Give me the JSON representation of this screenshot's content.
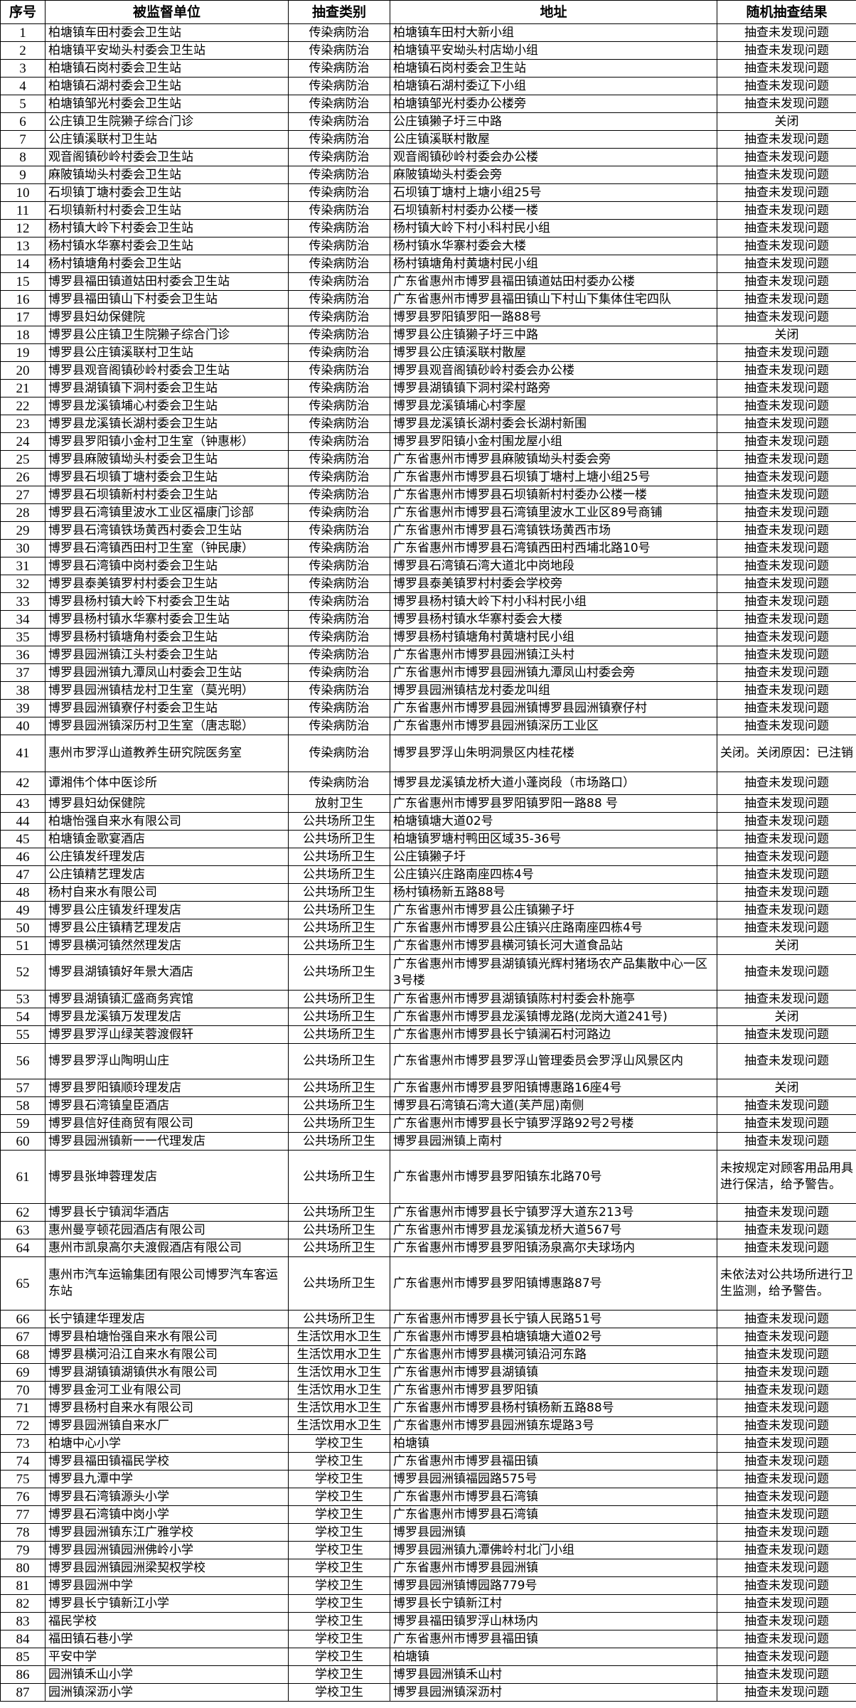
{
  "headers": [
    "序号",
    "被监督单位",
    "抽查类别",
    "地址",
    "随机抽查结果"
  ],
  "rows": [
    [
      "1",
      "柏塘镇车田村委会卫生站",
      "传染病防治",
      "柏塘镇车田村大新小组",
      "抽查未发现问题"
    ],
    [
      "2",
      "柏塘镇平安坳头村委会卫生站",
      "传染病防治",
      "柏塘镇平安坳头村店坳小组",
      "抽查未发现问题"
    ],
    [
      "3",
      "柏塘镇石岗村委会卫生站",
      "传染病防治",
      "柏塘镇石岗村委会卫生站",
      "抽查未发现问题"
    ],
    [
      "4",
      "柏塘镇石湖村委会卫生站",
      "传染病防治",
      "柏塘镇石湖村委辽下小组",
      "抽查未发现问题"
    ],
    [
      "5",
      "柏塘镇邹光村委会卫生站",
      "传染病防治",
      "柏塘镇邹光村委办公楼旁",
      "抽查未发现问题"
    ],
    [
      "6",
      "公庄镇卫生院獭子综合门诊",
      "传染病防治",
      "公庄镇獭子圩三中路",
      "关闭"
    ],
    [
      "7",
      "公庄镇溪联村卫生站",
      "传染病防治",
      "公庄镇溪联村散屋",
      "抽查未发现问题"
    ],
    [
      "8",
      "观音阁镇砂岭村委会卫生站",
      "传染病防治",
      "观音阁镇砂岭村委会办公楼",
      "抽查未发现问题"
    ],
    [
      "9",
      "麻陂镇坳头村委会卫生站",
      "传染病防治",
      "麻陂镇坳头村委会旁",
      "抽查未发现问题"
    ],
    [
      "10",
      "石坝镇丁塘村委会卫生站",
      "传染病防治",
      "石坝镇丁塘村上塘小组25号",
      "抽查未发现问题"
    ],
    [
      "11",
      "石坝镇新村村委会卫生站",
      "传染病防治",
      "石坝镇新村村委办公楼一楼",
      "抽查未发现问题"
    ],
    [
      "12",
      "杨村镇大岭下村委会卫生站",
      "传染病防治",
      "杨村镇大岭下村小科村民小组",
      "抽查未发现问题"
    ],
    [
      "13",
      "杨村镇水华寨村委会卫生站",
      "传染病防治",
      "杨村镇水华寨村委会大楼",
      "抽查未发现问题"
    ],
    [
      "14",
      "杨村镇塘角村委会卫生站",
      "传染病防治",
      "杨村镇塘角村黄塘村民小组",
      "抽查未发现问题"
    ],
    [
      "15",
      "博罗县福田镇道姑田村委会卫生站",
      "传染病防治",
      "广东省惠州市博罗县福田镇道姑田村委办公楼",
      "抽查未发现问题"
    ],
    [
      "16",
      "博罗县福田镇山下村委会卫生站",
      "传染病防治",
      "广东省惠州市博罗县福田镇山下村山下集体住宅四队",
      "抽查未发现问题"
    ],
    [
      "17",
      "博罗县妇幼保健院",
      "传染病防治",
      "博罗县罗阳镇罗阳一路88号",
      "抽查未发现问题"
    ],
    [
      "18",
      "博罗县公庄镇卫生院獭子综合门诊",
      "传染病防治",
      "博罗县公庄镇獭子圩三中路",
      "关闭"
    ],
    [
      "19",
      "博罗县公庄镇溪联村卫生站",
      "传染病防治",
      "博罗县公庄镇溪联村散屋",
      "抽查未发现问题"
    ],
    [
      "20",
      "博罗县观音阁镇砂岭村委会卫生站",
      "传染病防治",
      "博罗县观音阁镇砂岭村委会办公楼",
      "抽查未发现问题"
    ],
    [
      "21",
      "博罗县湖镇镇下洞村委会卫生站",
      "传染病防治",
      "博罗县湖镇镇下洞村梁村路旁",
      "抽查未发现问题"
    ],
    [
      "22",
      "博罗县龙溪镇埔心村委会卫生站",
      "传染病防治",
      "博罗县龙溪镇埔心村李屋",
      "抽查未发现问题"
    ],
    [
      "23",
      "博罗县龙溪镇长湖村委会卫生站",
      "传染病防治",
      "博罗县龙溪镇长湖村委会长湖村新围",
      "抽查未发现问题"
    ],
    [
      "24",
      "博罗县罗阳镇小金村卫生室（钟惠彬）",
      "传染病防治",
      "博罗县罗阳镇小金村围龙屋小组",
      "抽查未发现问题"
    ],
    [
      "25",
      "博罗县麻陂镇坳头村委会卫生站",
      "传染病防治",
      "广东省惠州市博罗县麻陂镇坳头村委会旁",
      "抽查未发现问题"
    ],
    [
      "26",
      "博罗县石坝镇丁塘村委会卫生站",
      "传染病防治",
      "广东省惠州市博罗县石坝镇丁塘村上塘小组25号",
      "抽查未发现问题"
    ],
    [
      "27",
      "博罗县石坝镇新村村委会卫生站",
      "传染病防治",
      "广东省惠州市博罗县石坝镇新村村委办公楼一楼",
      "抽查未发现问题"
    ],
    [
      "28",
      "博罗县石湾镇里波水工业区福康门诊部",
      "传染病防治",
      "广东省惠州市博罗县石湾镇里波水工业区89号商铺",
      "抽查未发现问题"
    ],
    [
      "29",
      "博罗县石湾镇铁场黄西村委会卫生站",
      "传染病防治",
      "广东省惠州市博罗县石湾镇铁场黄西市场",
      "抽查未发现问题"
    ],
    [
      "30",
      "博罗县石湾镇西田村卫生室（钟民康）",
      "传染病防治",
      "广东省惠州市博罗县石湾镇西田村西埔北路10号",
      "抽查未发现问题"
    ],
    [
      "31",
      "博罗县石湾镇中岗村委会卫生站",
      "传染病防治",
      "博罗县石湾镇石湾大道北中岗地段",
      "抽查未发现问题"
    ],
    [
      "32",
      "博罗县泰美镇罗村村委会卫生站",
      "传染病防治",
      "博罗县泰美镇罗村村委会学校旁",
      "抽查未发现问题"
    ],
    [
      "33",
      "博罗县杨村镇大岭下村委会卫生站",
      "传染病防治",
      "博罗县杨村镇大岭下村小科村民小组",
      "抽查未发现问题"
    ],
    [
      "34",
      "博罗县杨村镇水华寨村委会卫生站",
      "传染病防治",
      "博罗县杨村镇水华寨村委会大楼",
      "抽查未发现问题"
    ],
    [
      "35",
      "博罗县杨村镇塘角村委会卫生站",
      "传染病防治",
      "博罗县杨村镇塘角村黄塘村民小组",
      "抽查未发现问题"
    ],
    [
      "36",
      "博罗县园洲镇江头村委会卫生站",
      "传染病防治",
      "广东省惠州市博罗县园洲镇江头村",
      "抽查未发现问题"
    ],
    [
      "37",
      "博罗县园洲镇九潭凤山村委会卫生站",
      "传染病防治",
      "广东省惠州市博罗县园洲镇九潭凤山村委会旁",
      "抽查未发现问题"
    ],
    [
      "38",
      "博罗县园洲镇桔龙村卫生室（莫光明）",
      "传染病防治",
      "博罗县园洲镇桔龙村委龙叫组",
      "抽查未发现问题"
    ],
    [
      "39",
      "博罗县园洲镇寮仔村委会卫生站",
      "传染病防治",
      "广东省惠州市博罗县园洲镇博罗县园洲镇寮仔村",
      "抽查未发现问题"
    ],
    [
      "40",
      "博罗县园洲镇深历村卫生室（唐志聪）",
      "传染病防治",
      "广东省惠州市博罗县园洲镇深历工业区",
      "抽查未发现问题"
    ],
    [
      "41",
      "惠州市罗浮山道教养生研究院医务室",
      "传染病防治",
      "博罗县罗浮山朱明洞景区内桂花楼",
      "关闭。关闭原因：已注销"
    ],
    [
      "42",
      "谭湘伟个体中医诊所",
      "传染病防治",
      "博罗县龙溪镇龙桥大道小蓬岗段（市场路口）",
      "抽查未发现问题"
    ],
    [
      "43",
      "博罗县妇幼保健院",
      "放射卫生",
      "广东省惠州市博罗县罗阳镇罗阳一路88 号",
      "抽查未发现问题"
    ],
    [
      "44",
      "柏塘怡强自来水有限公司",
      "公共场所卫生",
      "柏塘镇塘大道02号",
      "抽查未发现问题"
    ],
    [
      "45",
      "柏塘镇金歌宴酒店",
      "公共场所卫生",
      "柏塘镇罗塘村鸭田区域35-36号",
      "抽查未发现问题"
    ],
    [
      "46",
      "公庄镇发纤理发店",
      "公共场所卫生",
      "公庄镇獭子圩",
      "抽查未发现问题"
    ],
    [
      "47",
      "公庄镇精艺理发店",
      "公共场所卫生",
      "公庄镇兴庄路南座四栋4号",
      "抽查未发现问题"
    ],
    [
      "48",
      "杨村自来水有限公司",
      "公共场所卫生",
      "杨村镇杨新五路88号",
      "抽查未发现问题"
    ],
    [
      "49",
      "博罗县公庄镇发纤理发店",
      "公共场所卫生",
      "广东省惠州市博罗县公庄镇獭子圩",
      "抽查未发现问题"
    ],
    [
      "50",
      "博罗县公庄镇精艺理发店",
      "公共场所卫生",
      "广东省惠州市博罗县公庄镇兴庄路南座四栋4号",
      "抽查未发现问题"
    ],
    [
      "51",
      "博罗县横河镇然然理发店",
      "公共场所卫生",
      "广东省惠州市博罗县横河镇长河大道食品站",
      "关闭"
    ],
    [
      "52",
      "博罗县湖镇镇好年景大酒店",
      "公共场所卫生",
      "广东省惠州市博罗县湖镇镇光辉村猪场农产品集散中心一区3号楼",
      "抽查未发现问题"
    ],
    [
      "53",
      "博罗县湖镇镇汇盛商务宾馆",
      "公共场所卫生",
      "广东省惠州市博罗县湖镇镇陈村村委会朴施亭",
      "抽查未发现问题"
    ],
    [
      "54",
      "博罗县龙溪镇万发理发店",
      "公共场所卫生",
      "广东省惠州市博罗县龙溪镇博龙路(龙岗大道241号)",
      "关闭"
    ],
    [
      "55",
      "博罗县罗浮山绿芙蓉渡假轩",
      "公共场所卫生",
      "广东省惠州市博罗县长宁镇澜石村河路边",
      "抽查未发现问题"
    ],
    [
      "56",
      "博罗县罗浮山陶明山庄",
      "公共场所卫生",
      "广东省惠州市博罗县罗浮山管理委员会罗浮山风景区内",
      "抽查未发现问题"
    ],
    [
      "57",
      "博罗县罗阳镇顺玲理发店",
      "公共场所卫生",
      "广东省惠州市博罗县罗阳镇博惠路16座4号",
      "关闭"
    ],
    [
      "58",
      "博罗县石湾镇皇臣酒店",
      "公共场所卫生",
      "博罗县石湾镇石湾大道(芙芦屈)南侧",
      "抽查未发现问题"
    ],
    [
      "59",
      "博罗县信好佳商贸有限公司",
      "公共场所卫生",
      "广东省惠州市博罗县长宁镇罗浮路92号2号楼",
      "抽查未发现问题"
    ],
    [
      "60",
      "博罗县园洲镇新一一代理发店",
      "公共场所卫生",
      "博罗县园洲镇上南村",
      "抽查未发现问题"
    ],
    [
      "61",
      "博罗县张坤蓉理发店",
      "公共场所卫生",
      "广东省惠州市博罗县罗阳镇东北路70号",
      "未按规定对顾客用品用具进行保洁，给予警告。"
    ],
    [
      "62",
      "博罗县长宁镇润华酒店",
      "公共场所卫生",
      "广东省惠州市博罗县长宁镇罗浮大道东213号",
      "抽查未发现问题"
    ],
    [
      "63",
      "惠州曼亨顿花园酒店有限公司",
      "公共场所卫生",
      "广东省惠州市博罗县龙溪镇龙桥大道567号",
      "抽查未发现问题"
    ],
    [
      "64",
      "惠州市凯泉高尔夫渡假酒店有限公司",
      "公共场所卫生",
      "广东省惠州市博罗县罗阳镇汤泉高尔夫球场内",
      "抽查未发现问题"
    ],
    [
      "65",
      "惠州市汽车运输集团有限公司博罗汽车客运东站",
      "公共场所卫生",
      "广东省惠州市博罗县罗阳镇博惠路87号",
      "未依法对公共场所进行卫生监测，给予警告。"
    ],
    [
      "66",
      "长宁镇建华理发店",
      "公共场所卫生",
      "广东省惠州市博罗县长宁镇人民路51号",
      "抽查未发现问题"
    ],
    [
      "67",
      "博罗县柏塘怡强自来水有限公司",
      "生活饮用水卫生",
      "广东省惠州市博罗县柏塘镇塘大道02号",
      "抽查未发现问题"
    ],
    [
      "68",
      "博罗县横河沿江自来水有限公司",
      "生活饮用水卫生",
      "广东省惠州市博罗县横河镇沿河东路",
      "抽查未发现问题"
    ],
    [
      "69",
      "博罗县湖镇镇湖镇供水有限公司",
      "生活饮用水卫生",
      "广东省惠州市博罗县湖镇镇",
      "抽查未发现问题"
    ],
    [
      "70",
      "博罗县金河工业有限公司",
      "生活饮用水卫生",
      "广东省惠州市博罗县罗阳镇",
      "抽查未发现问题"
    ],
    [
      "71",
      "博罗县杨村自来水有限公司",
      "生活饮用水卫生",
      "广东省惠州市博罗县杨村镇杨新五路88号",
      "抽查未发现问题"
    ],
    [
      "72",
      "博罗县园洲镇自来水厂",
      "生活饮用水卫生",
      "广东省惠州市博罗县园洲镇东堤路3号",
      "抽查未发现问题"
    ],
    [
      "73",
      "柏塘中心小学",
      "学校卫生",
      "柏塘镇",
      "抽查未发现问题"
    ],
    [
      "74",
      "博罗县福田镇福民学校",
      "学校卫生",
      "广东省惠州市博罗县福田镇",
      "抽查未发现问题"
    ],
    [
      "75",
      "博罗县九潭中学",
      "学校卫生",
      "博罗县园洲镇福园路575号",
      "抽查未发现问题"
    ],
    [
      "76",
      "博罗县石湾镇源头小学",
      "学校卫生",
      "广东省惠州市博罗县石湾镇",
      "抽查未发现问题"
    ],
    [
      "77",
      "博罗县石湾镇中岗小学",
      "学校卫生",
      "广东省惠州市博罗县石湾镇",
      "抽查未发现问题"
    ],
    [
      "78",
      "博罗县园洲镇东江广雅学校",
      "学校卫生",
      "博罗县园洲镇",
      "抽查未发现问题"
    ],
    [
      "79",
      "博罗县园洲镇园洲佛岭小学",
      "学校卫生",
      "博罗县园洲镇九潭佛岭村北门小组",
      "抽查未发现问题"
    ],
    [
      "80",
      "博罗县园洲镇园洲梁契权学校",
      "学校卫生",
      "广东省惠州市博罗县园洲镇",
      "抽查未发现问题"
    ],
    [
      "81",
      "博罗县园洲中学",
      "学校卫生",
      "博罗县园洲镇博园路779号",
      "抽查未发现问题"
    ],
    [
      "82",
      "博罗县长宁镇新江小学",
      "学校卫生",
      "博罗县长宁镇新江村",
      "抽查未发现问题"
    ],
    [
      "83",
      "福民学校",
      "学校卫生",
      "博罗县福田镇罗浮山林场内",
      "抽查未发现问题"
    ],
    [
      "84",
      "福田镇石巷小学",
      "学校卫生",
      "广东省惠州市博罗县福田镇",
      "抽查未发现问题"
    ],
    [
      "85",
      "平安中学",
      "学校卫生",
      "柏塘镇",
      "抽查未发现问题"
    ],
    [
      "86",
      "园洲镇禾山小学",
      "学校卫生",
      "博罗县园洲镇禾山村",
      "抽查未发现问题"
    ],
    [
      "87",
      "园洲镇深沥小学",
      "学校卫生",
      "博罗县园洲镇深沥村",
      "抽查未发现问题"
    ]
  ]
}
